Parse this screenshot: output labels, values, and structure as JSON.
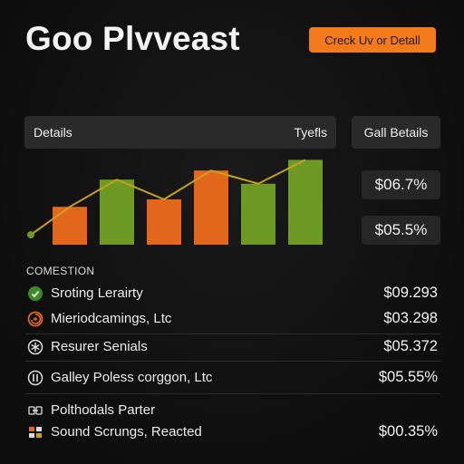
{
  "header": {
    "title": "Goo Plvveast",
    "cta_label": "Creck Uv or Detall"
  },
  "table_header": {
    "left": "Details",
    "right": "Tyefls"
  },
  "side_panel": {
    "title": "Gall Betails",
    "stats": [
      "$06.7%",
      "$05.5%"
    ]
  },
  "colors": {
    "accent": "#f27a1a",
    "bar_orange": "#e2671c",
    "bar_green": "#6d9a24",
    "trend_line": "#c9a21a"
  },
  "chart_data": {
    "type": "bar",
    "values": [
      46,
      79,
      55,
      90,
      74,
      103
    ],
    "ylim": [
      0,
      110
    ],
    "trend": [
      12,
      46,
      79,
      55,
      90,
      74,
      103
    ],
    "bar_colors": [
      "orange",
      "green",
      "orange",
      "orange",
      "green",
      "green"
    ]
  },
  "section": {
    "label": "COMESTION"
  },
  "rows": [
    {
      "icon": "green-badge-icon",
      "name": "Sroting Lerairty",
      "amount": "$09.293"
    },
    {
      "icon": "orange-swirl-icon",
      "name": "Mieriodcamings, Ltc",
      "amount": "$03.298"
    },
    {
      "icon": "asterisk-circle-icon",
      "name": "Resurer Senials",
      "amount": "$05.372"
    },
    {
      "icon": "pillar-circle-icon",
      "name": "Galley Poless corggon, Ltc",
      "amount": "$05.55%"
    },
    {
      "icon": "handshake-icon",
      "name": "Polthodals Parter",
      "amount": ""
    },
    {
      "icon": "puzzle-icon",
      "name": "Sound Scrungs, Reacted",
      "amount": "$00.35%"
    }
  ]
}
